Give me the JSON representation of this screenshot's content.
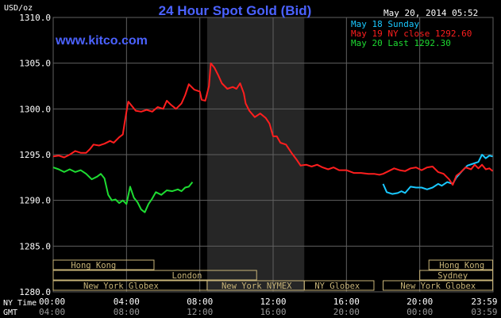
{
  "header": {
    "title": "24 Hour Spot Gold (Bid)",
    "unit": "USD/oz",
    "timestamp": "May 20, 2014 05:52",
    "website": "www.kitco.com"
  },
  "colors": {
    "background": "#000000",
    "grid": "#606060",
    "axis_text": "#ffffff",
    "title": "#4b62ff",
    "website": "#4b62ff",
    "series_may18": "#19c8ff",
    "series_may19": "#ff1e1e",
    "series_may20": "#1edc32",
    "session_shade": "#262626",
    "market_bar": "#c8b478"
  },
  "legend": [
    {
      "text": "May 18 Sunday",
      "color": "#19c8ff"
    },
    {
      "text": "May 19 NY close 1292.60",
      "color": "#ff1e1e"
    },
    {
      "text": "May 20 Last 1292.30",
      "color": "#1edc32"
    }
  ],
  "axis_labels": {
    "ny_time": "NY Time",
    "gmt": "GMT",
    "ny_ticks": [
      "00:00",
      "04:00",
      "08:00",
      "12:00",
      "16:00",
      "20:00",
      "23:59"
    ],
    "gmt_ticks": [
      "04:00",
      "08:00",
      "12:00",
      "16:00",
      "20:00",
      "00:00",
      "03:59"
    ]
  },
  "markets": [
    {
      "name": "Hong Kong",
      "row": 0,
      "start_hour": 0,
      "end_hour": 5.5,
      "label_at": 2.2
    },
    {
      "name": "London",
      "row": 1,
      "start_hour": 0,
      "end_hour": 11.1,
      "label_at": 7.3
    },
    {
      "name": "New York Globex",
      "row": 2,
      "start_hour": 0,
      "end_hour": 8.4,
      "label_at": 3.7
    },
    {
      "name": "New York NYMEX",
      "row": 2,
      "start_hour": 8.4,
      "end_hour": 13.7,
      "label_at": 11.1
    },
    {
      "name": "NY Globex",
      "row": 2,
      "start_hour": 13.7,
      "end_hour": 17.5,
      "label_at": 15.5
    },
    {
      "name": "New York Globex",
      "row": 2,
      "start_hour": 18.0,
      "end_hour": 23.98,
      "label_at": 21.0
    },
    {
      "name": "Hong Kong",
      "row": 0,
      "start_hour": 20.5,
      "end_hour": 23.98,
      "label_at": 22.3
    },
    {
      "name": "Sydney",
      "row": 1,
      "start_hour": 20.0,
      "end_hour": 23.98,
      "label_at": 21.8
    }
  ],
  "chart_data": {
    "type": "line",
    "title": "24 Hour Spot Gold (Bid)",
    "ylabel": "USD/oz",
    "xlabel": "NY Time",
    "ylim": [
      1280,
      1310
    ],
    "xlim_hours": [
      0,
      24
    ],
    "y_ticks": [
      "1310.0",
      "1305.0",
      "1300.0",
      "1295.0",
      "1290.0",
      "1285.0",
      "1280.0"
    ],
    "highlight_session_hours": [
      8.4,
      13.7
    ],
    "grid": true,
    "legend_position": "top-right",
    "series": [
      {
        "name": "May 18 Sunday",
        "color": "#19c8ff",
        "points": [
          [
            18.0,
            1291.8
          ],
          [
            18.2,
            1290.9
          ],
          [
            18.5,
            1290.7
          ],
          [
            18.8,
            1290.8
          ],
          [
            19.0,
            1291.0
          ],
          [
            19.2,
            1290.8
          ],
          [
            19.5,
            1291.5
          ],
          [
            19.8,
            1291.4
          ],
          [
            20.1,
            1291.4
          ],
          [
            20.4,
            1291.2
          ],
          [
            20.7,
            1291.4
          ],
          [
            21.0,
            1291.8
          ],
          [
            21.2,
            1291.6
          ],
          [
            21.5,
            1292.0
          ],
          [
            21.8,
            1291.8
          ],
          [
            22.0,
            1292.5
          ],
          [
            22.3,
            1293.2
          ],
          [
            22.6,
            1293.8
          ],
          [
            22.9,
            1294.0
          ],
          [
            23.2,
            1294.2
          ],
          [
            23.4,
            1295.0
          ],
          [
            23.6,
            1294.6
          ],
          [
            23.8,
            1294.9
          ],
          [
            23.98,
            1294.8
          ]
        ]
      },
      {
        "name": "May 19 NY close 1292.60",
        "color": "#ff1e1e",
        "points": [
          [
            0.0,
            1294.8
          ],
          [
            0.3,
            1294.9
          ],
          [
            0.6,
            1294.7
          ],
          [
            0.9,
            1295.0
          ],
          [
            1.2,
            1295.4
          ],
          [
            1.5,
            1295.2
          ],
          [
            1.8,
            1295.2
          ],
          [
            2.0,
            1295.6
          ],
          [
            2.2,
            1296.1
          ],
          [
            2.5,
            1296.0
          ],
          [
            2.8,
            1296.2
          ],
          [
            3.1,
            1296.5
          ],
          [
            3.3,
            1296.3
          ],
          [
            3.6,
            1296.9
          ],
          [
            3.8,
            1297.2
          ],
          [
            3.9,
            1298.5
          ],
          [
            4.0,
            1299.7
          ],
          [
            4.1,
            1300.8
          ],
          [
            4.3,
            1300.3
          ],
          [
            4.5,
            1299.8
          ],
          [
            4.8,
            1299.7
          ],
          [
            5.1,
            1299.9
          ],
          [
            5.4,
            1299.7
          ],
          [
            5.7,
            1300.2
          ],
          [
            6.0,
            1300.0
          ],
          [
            6.2,
            1300.9
          ],
          [
            6.4,
            1300.5
          ],
          [
            6.7,
            1300.0
          ],
          [
            7.0,
            1300.6
          ],
          [
            7.2,
            1301.5
          ],
          [
            7.4,
            1302.7
          ],
          [
            7.7,
            1302.1
          ],
          [
            8.0,
            1301.9
          ],
          [
            8.1,
            1301.0
          ],
          [
            8.3,
            1300.9
          ],
          [
            8.5,
            1302.5
          ],
          [
            8.6,
            1305.0
          ],
          [
            8.8,
            1304.5
          ],
          [
            9.0,
            1303.7
          ],
          [
            9.2,
            1302.8
          ],
          [
            9.5,
            1302.2
          ],
          [
            9.8,
            1302.4
          ],
          [
            10.0,
            1302.2
          ],
          [
            10.2,
            1302.8
          ],
          [
            10.4,
            1301.7
          ],
          [
            10.5,
            1300.6
          ],
          [
            10.7,
            1299.8
          ],
          [
            11.0,
            1299.1
          ],
          [
            11.3,
            1299.5
          ],
          [
            11.6,
            1299.0
          ],
          [
            11.8,
            1298.4
          ],
          [
            12.0,
            1297.0
          ],
          [
            12.2,
            1297.0
          ],
          [
            12.4,
            1296.3
          ],
          [
            12.7,
            1296.1
          ],
          [
            13.0,
            1295.2
          ],
          [
            13.3,
            1294.4
          ],
          [
            13.5,
            1293.8
          ],
          [
            13.8,
            1293.9
          ],
          [
            14.1,
            1293.7
          ],
          [
            14.4,
            1293.9
          ],
          [
            14.7,
            1293.6
          ],
          [
            15.0,
            1293.4
          ],
          [
            15.3,
            1293.6
          ],
          [
            15.6,
            1293.3
          ],
          [
            16.0,
            1293.3
          ],
          [
            16.4,
            1293.0
          ],
          [
            16.8,
            1293.0
          ],
          [
            17.2,
            1292.9
          ],
          [
            17.5,
            1292.9
          ],
          [
            17.8,
            1292.8
          ],
          [
            18.0,
            1292.9
          ],
          [
            18.3,
            1293.2
          ],
          [
            18.6,
            1293.5
          ],
          [
            18.9,
            1293.3
          ],
          [
            19.2,
            1293.2
          ],
          [
            19.5,
            1293.5
          ],
          [
            19.8,
            1293.6
          ],
          [
            20.1,
            1293.3
          ],
          [
            20.4,
            1293.6
          ],
          [
            20.7,
            1293.7
          ],
          [
            21.0,
            1293.1
          ],
          [
            21.3,
            1292.9
          ],
          [
            21.6,
            1292.3
          ],
          [
            21.8,
            1291.7
          ],
          [
            22.0,
            1292.7
          ],
          [
            22.2,
            1293.0
          ],
          [
            22.5,
            1293.6
          ],
          [
            22.8,
            1293.4
          ],
          [
            23.0,
            1293.9
          ],
          [
            23.2,
            1293.5
          ],
          [
            23.4,
            1293.9
          ],
          [
            23.6,
            1293.4
          ],
          [
            23.8,
            1293.5
          ],
          [
            23.98,
            1293.2
          ]
        ]
      },
      {
        "name": "May 20 Last 1292.30",
        "color": "#1edc32",
        "points": [
          [
            0.0,
            1293.6
          ],
          [
            0.3,
            1293.4
          ],
          [
            0.6,
            1293.1
          ],
          [
            0.9,
            1293.4
          ],
          [
            1.2,
            1293.1
          ],
          [
            1.5,
            1293.3
          ],
          [
            1.8,
            1292.9
          ],
          [
            2.1,
            1292.3
          ],
          [
            2.4,
            1292.6
          ],
          [
            2.6,
            1292.9
          ],
          [
            2.8,
            1292.4
          ],
          [
            3.0,
            1290.6
          ],
          [
            3.2,
            1290.0
          ],
          [
            3.4,
            1290.1
          ],
          [
            3.6,
            1289.7
          ],
          [
            3.8,
            1290.0
          ],
          [
            4.0,
            1289.6
          ],
          [
            4.2,
            1291.5
          ],
          [
            4.4,
            1290.3
          ],
          [
            4.6,
            1289.8
          ],
          [
            4.8,
            1289.0
          ],
          [
            5.0,
            1288.7
          ],
          [
            5.2,
            1289.6
          ],
          [
            5.4,
            1290.2
          ],
          [
            5.6,
            1290.9
          ],
          [
            5.9,
            1290.6
          ],
          [
            6.2,
            1291.1
          ],
          [
            6.5,
            1291.0
          ],
          [
            6.8,
            1291.2
          ],
          [
            7.0,
            1291.0
          ],
          [
            7.2,
            1291.4
          ],
          [
            7.4,
            1291.5
          ],
          [
            7.6,
            1292.0
          ]
        ]
      }
    ]
  }
}
